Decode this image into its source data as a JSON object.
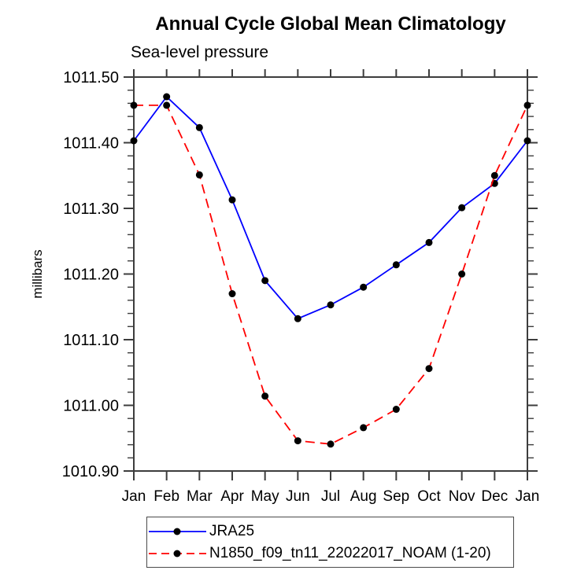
{
  "chart_data": {
    "type": "line",
    "title": "Annual Cycle Global Mean Climatology",
    "subtitle": "Sea-level pressure",
    "ylabel": "millibars",
    "categories": [
      "Jan",
      "Feb",
      "Mar",
      "Apr",
      "May",
      "Jun",
      "Jul",
      "Aug",
      "Sep",
      "Oct",
      "Nov",
      "Dec",
      "Jan"
    ],
    "ylim": [
      1010.9,
      1011.5
    ],
    "y_major_step": 0.1,
    "y_minor_step": 0.02,
    "grid": false,
    "legend_position": "bottom",
    "axis_color": "#3d3d3d",
    "text_color": "#000000",
    "series": [
      {
        "name": "JRA25",
        "color": "#0000ff",
        "style": "solid",
        "marker": "circle",
        "marker_color": "#000000",
        "values": [
          1011.403,
          1011.47,
          1011.423,
          1011.313,
          1011.19,
          1011.132,
          1011.153,
          1011.18,
          1011.214,
          1011.248,
          1011.301,
          1011.338,
          1011.403
        ]
      },
      {
        "name": "N1850_f09_tn11_22022017_NOAM (1-20)",
        "color": "#ff0000",
        "style": "dashed",
        "marker": "circle",
        "marker_color": "#000000",
        "values": [
          1011.457,
          1011.457,
          1011.351,
          1011.17,
          1011.014,
          1010.946,
          1010.941,
          1010.966,
          1010.994,
          1011.056,
          1011.2,
          1011.35,
          1011.457
        ]
      }
    ]
  }
}
